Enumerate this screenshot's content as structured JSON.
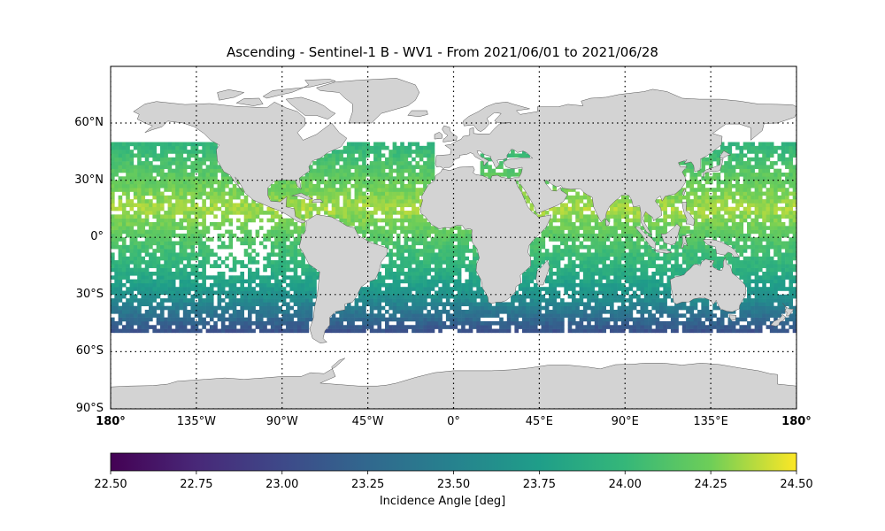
{
  "chart_data": {
    "type": "heatmap",
    "title": "Ascending - Sentinel-1 B - WV1 - From 2021/06/01 to 2021/06/28",
    "projection": "plate-carree",
    "lon_range": [
      -180,
      180
    ],
    "lat_range": [
      -90,
      90
    ],
    "grid": true,
    "grid_style": "dotted",
    "x_ticks": [
      {
        "value": -180,
        "label": "180°"
      },
      {
        "value": -135,
        "label": "135°W"
      },
      {
        "value": -90,
        "label": "90°W"
      },
      {
        "value": -45,
        "label": "45°W"
      },
      {
        "value": 0,
        "label": "0°"
      },
      {
        "value": 45,
        "label": "45°E"
      },
      {
        "value": 90,
        "label": "90°E"
      },
      {
        "value": 135,
        "label": "135°E"
      },
      {
        "value": 180,
        "label": "180°"
      }
    ],
    "y_ticks": [
      {
        "value": 60,
        "label": "60°N"
      },
      {
        "value": 30,
        "label": "30°N"
      },
      {
        "value": 0,
        "label": "0°"
      },
      {
        "value": -30,
        "label": "30°S"
      },
      {
        "value": -60,
        "label": "60°S"
      },
      {
        "value": -90,
        "label": "90°S"
      }
    ],
    "data_lat_coverage": [
      -50,
      50
    ],
    "value_trend_by_latitude": [
      {
        "lat": 50,
        "value": 23.95
      },
      {
        "lat": 35,
        "value": 24.15
      },
      {
        "lat": 15,
        "value": 24.35
      },
      {
        "lat": 0,
        "value": 24.15
      },
      {
        "lat": -15,
        "value": 23.95
      },
      {
        "lat": -30,
        "value": 23.65
      },
      {
        "lat": -40,
        "value": 23.35
      },
      {
        "lat": -50,
        "value": 23.05
      }
    ],
    "colorbar": {
      "colormap": "viridis",
      "min": 22.5,
      "max": 24.5,
      "ticks": [
        "22.50",
        "22.75",
        "23.00",
        "23.25",
        "23.50",
        "23.75",
        "24.00",
        "24.25",
        "24.50"
      ],
      "label": "Incidence Angle [deg]",
      "orientation": "horizontal"
    },
    "colors": {
      "land": "#d3d3d3",
      "coastline": "#555555",
      "ocean": "#ffffff"
    }
  }
}
